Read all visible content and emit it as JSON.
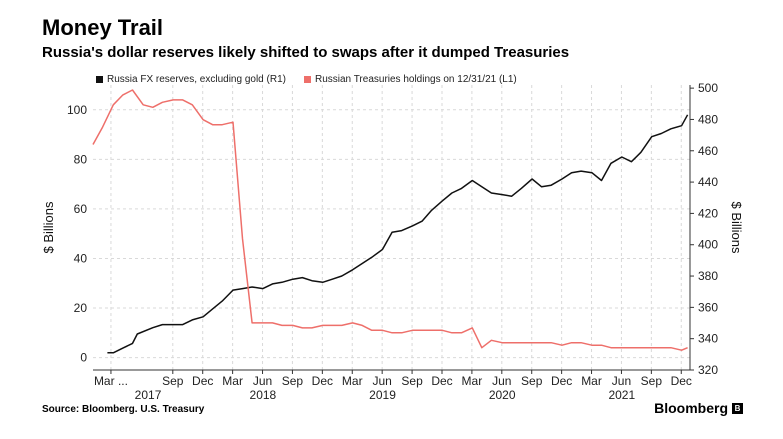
{
  "header": {
    "title": "Money Trail",
    "subtitle": "Russia's dollar reserves likely shifted to swaps after it dumped Treasuries"
  },
  "footer": {
    "source": "Source: Bloomberg. U.S. Treasury",
    "brand": "Bloomberg",
    "brand_icon": "B"
  },
  "colors": {
    "fx": "#111111",
    "treasuries": "#ee6f6a",
    "grid": "#d9d9d9"
  },
  "chart_data": {
    "type": "line",
    "title": "Money Trail",
    "subtitle": "Russia's dollar reserves likely shifted to swaps after it dumped Treasuries",
    "ylabel_left": "$ Billions",
    "ylabel_right": "$ Billions",
    "ylim_left": [
      -5,
      110
    ],
    "ylim_right": [
      320,
      502
    ],
    "yticks_left": [
      0,
      20,
      40,
      60,
      80,
      100
    ],
    "yticks_right": [
      320,
      340,
      360,
      380,
      400,
      420,
      440,
      460,
      480,
      500
    ],
    "xlim": [
      2017.0,
      2021.99
    ],
    "month_ticks": [
      {
        "label": "Mar ...",
        "x": 2017.15
      },
      {
        "label": "Sep",
        "x": 2017.667
      },
      {
        "label": "Dec",
        "x": 2017.917
      },
      {
        "label": "Mar",
        "x": 2018.167
      },
      {
        "label": "Jun",
        "x": 2018.417
      },
      {
        "label": "Sep",
        "x": 2018.667
      },
      {
        "label": "Dec",
        "x": 2018.917
      },
      {
        "label": "Mar",
        "x": 2019.167
      },
      {
        "label": "Jun",
        "x": 2019.417
      },
      {
        "label": "Sep",
        "x": 2019.667
      },
      {
        "label": "Dec",
        "x": 2019.917
      },
      {
        "label": "Mar",
        "x": 2020.167
      },
      {
        "label": "Jun",
        "x": 2020.417
      },
      {
        "label": "Sep",
        "x": 2020.667
      },
      {
        "label": "Dec",
        "x": 2020.917
      },
      {
        "label": "Mar",
        "x": 2021.167
      },
      {
        "label": "Jun",
        "x": 2021.417
      },
      {
        "label": "Sep",
        "x": 2021.667
      },
      {
        "label": "Dec",
        "x": 2021.917
      }
    ],
    "year_labels": [
      {
        "label": "2017",
        "x": 2017.46
      },
      {
        "label": "2018",
        "x": 2018.42
      },
      {
        "label": "2019",
        "x": 2019.42
      },
      {
        "label": "2020",
        "x": 2020.42
      },
      {
        "label": "2021",
        "x": 2021.42
      }
    ],
    "series": [
      {
        "name": "Russia FX reserves, excluding gold (R1)",
        "axis": "right",
        "x": [
          2017.12,
          2017.17,
          2017.25,
          2017.33,
          2017.37,
          2017.5,
          2017.58,
          2017.67,
          2017.75,
          2017.83,
          2017.92,
          2018.0,
          2018.08,
          2018.17,
          2018.25,
          2018.33,
          2018.42,
          2018.5,
          2018.58,
          2018.67,
          2018.75,
          2018.83,
          2018.92,
          2019.0,
          2019.08,
          2019.17,
          2019.25,
          2019.33,
          2019.42,
          2019.5,
          2019.58,
          2019.67,
          2019.75,
          2019.83,
          2019.92,
          2020.0,
          2020.08,
          2020.17,
          2020.25,
          2020.33,
          2020.42,
          2020.5,
          2020.58,
          2020.67,
          2020.75,
          2020.83,
          2020.92,
          2021.0,
          2021.08,
          2021.17,
          2021.25,
          2021.33,
          2021.42,
          2021.5,
          2021.58,
          2021.67,
          2021.75,
          2021.83,
          2021.92,
          2021.97
        ],
        "values": [
          331,
          331,
          334,
          337,
          343,
          347,
          349,
          349,
          349,
          352,
          354,
          359,
          364,
          371,
          372,
          373,
          372,
          375,
          376,
          378,
          379,
          377,
          376,
          378,
          380,
          384,
          388,
          392,
          397,
          408,
          409,
          412,
          415,
          422,
          428,
          433,
          436,
          441,
          437,
          433,
          432,
          431,
          436,
          442,
          437,
          438,
          442,
          446,
          447,
          446,
          441,
          452,
          456,
          453,
          459,
          469,
          471,
          474,
          476,
          483
        ]
      },
      {
        "name": "Russian Treasuries holdings on 12/31/21 (L1)",
        "axis": "left",
        "x": [
          2017.0,
          2017.08,
          2017.17,
          2017.25,
          2017.33,
          2017.42,
          2017.5,
          2017.58,
          2017.67,
          2017.75,
          2017.83,
          2017.92,
          2018.0,
          2018.08,
          2018.17,
          2018.25,
          2018.33,
          2018.37,
          2018.42,
          2018.5,
          2018.58,
          2018.67,
          2018.75,
          2018.83,
          2018.92,
          2019.0,
          2019.08,
          2019.17,
          2019.25,
          2019.33,
          2019.42,
          2019.5,
          2019.58,
          2019.67,
          2019.75,
          2019.83,
          2019.92,
          2020.0,
          2020.08,
          2020.17,
          2020.25,
          2020.33,
          2020.42,
          2020.5,
          2020.58,
          2020.67,
          2020.75,
          2020.83,
          2020.92,
          2021.0,
          2021.08,
          2021.17,
          2021.25,
          2021.33,
          2021.42,
          2021.5,
          2021.58,
          2021.67,
          2021.75,
          2021.83,
          2021.92,
          2021.97
        ],
        "values": [
          86,
          93,
          102,
          106,
          108,
          102,
          101,
          103,
          104,
          104,
          102,
          96,
          94,
          94,
          95,
          48,
          14,
          14,
          14,
          14,
          13,
          13,
          12,
          12,
          13,
          13,
          13,
          14,
          13,
          11,
          11,
          10,
          10,
          11,
          11,
          11,
          11,
          10,
          10,
          12,
          4,
          7,
          6,
          6,
          6,
          6,
          6,
          6,
          5,
          6,
          6,
          5,
          5,
          4,
          4,
          4,
          4,
          4,
          4,
          4,
          3,
          4
        ]
      }
    ]
  }
}
